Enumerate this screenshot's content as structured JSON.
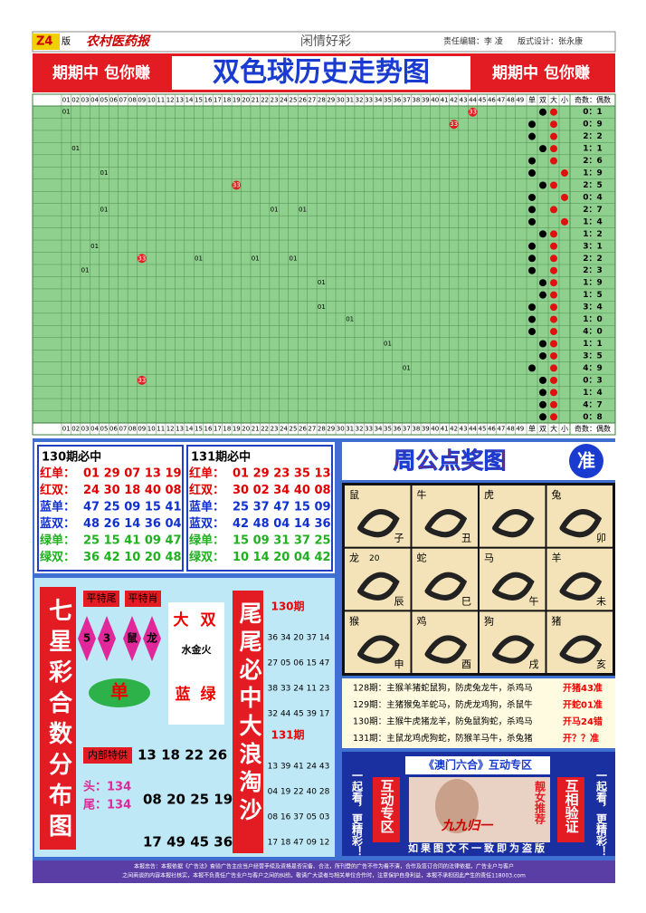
{
  "header": {
    "page": "Z4",
    "edition": "版",
    "paper": "农村医药报",
    "column": "闲情好彩",
    "editor": "责任编辑：李 凌",
    "designer": "版式设计：张永康"
  },
  "banner": {
    "left": "期期中 包你赚",
    "title": "双色球历史走势图",
    "right": "期期中 包你赚"
  },
  "trend": {
    "columns": [
      "01",
      "02",
      "03",
      "04",
      "05",
      "06",
      "07",
      "08",
      "09",
      "10",
      "11",
      "12",
      "13",
      "14",
      "15",
      "16",
      "17",
      "18",
      "19",
      "20",
      "21",
      "22",
      "23",
      "24",
      "25",
      "26",
      "27",
      "28",
      "29",
      "30",
      "31",
      "32",
      "33",
      "34",
      "35",
      "36",
      "37",
      "38",
      "39",
      "40",
      "41",
      "42",
      "43",
      "44",
      "45",
      "46",
      "47",
      "48",
      "49"
    ],
    "tail_columns": [
      "单",
      "双",
      "大",
      "小"
    ],
    "ratio_header": "奇数：偶数",
    "dot_colors": {
      "单": "#000000",
      "双": "#000000",
      "大": "#e01010",
      "小": "#e01010"
    },
    "rows": [
      {
        "balls": [
          {
            "col": "01",
            "label": "01"
          },
          {
            "col": "44",
            "label": "33",
            "color": "#e02020"
          }
        ],
        "dots": [
          "双",
          "大"
        ],
        "ratio": "0：1"
      },
      {
        "balls": [
          {
            "col": "42",
            "label": "33",
            "color": "#e02020"
          }
        ],
        "dots": [
          "单",
          "大"
        ],
        "ratio": "0：9"
      },
      {
        "balls": [],
        "dots": [
          "单",
          "大"
        ],
        "ratio": "2：2"
      },
      {
        "balls": [
          {
            "col": "02",
            "label": "01"
          }
        ],
        "dots": [
          "双",
          "大"
        ],
        "ratio": "1：1"
      },
      {
        "balls": [],
        "dots": [
          "单",
          "大"
        ],
        "ratio": "2：6"
      },
      {
        "balls": [
          {
            "col": "05",
            "label": "01"
          }
        ],
        "dots": [
          "单",
          "小"
        ],
        "ratio": "1：9"
      },
      {
        "balls": [
          {
            "col": "19",
            "label": "33",
            "color": "#e02020"
          }
        ],
        "dots": [
          "双",
          "大"
        ],
        "ratio": "2：5"
      },
      {
        "balls": [],
        "dots": [
          "单",
          "小"
        ],
        "ratio": "0：4"
      },
      {
        "balls": [
          {
            "col": "05",
            "label": "01"
          },
          {
            "col": "23",
            "label": "01"
          },
          {
            "col": "26",
            "label": "01"
          }
        ],
        "dots": [
          "单",
          "大"
        ],
        "ratio": "2：7"
      },
      {
        "balls": [],
        "dots": [
          "单",
          "小"
        ],
        "ratio": "1：4"
      },
      {
        "balls": [],
        "dots": [
          "双",
          "大"
        ],
        "ratio": "1：2"
      },
      {
        "balls": [
          {
            "col": "04",
            "label": "01"
          }
        ],
        "dots": [
          "单",
          "大"
        ],
        "ratio": "3：1"
      },
      {
        "balls": [
          {
            "col": "09",
            "label": "33",
            "color": "#e02020"
          },
          {
            "col": "15",
            "label": "01"
          },
          {
            "col": "21",
            "label": "01"
          },
          {
            "col": "25",
            "label": "01"
          }
        ],
        "dots": [
          "单",
          "大"
        ],
        "ratio": "2：2"
      },
      {
        "balls": [
          {
            "col": "03",
            "label": "01"
          }
        ],
        "dots": [
          "单",
          "大"
        ],
        "ratio": "2：3"
      },
      {
        "balls": [
          {
            "col": "28",
            "label": "01"
          }
        ],
        "dots": [
          "双",
          "大"
        ],
        "ratio": "1：9"
      },
      {
        "balls": [],
        "dots": [
          "双",
          "大"
        ],
        "ratio": "1：5"
      },
      {
        "balls": [
          {
            "col": "28",
            "label": "01"
          }
        ],
        "dots": [
          "单",
          "大"
        ],
        "ratio": "3：4"
      },
      {
        "balls": [
          {
            "col": "31",
            "label": "01"
          }
        ],
        "dots": [
          "单",
          "大"
        ],
        "ratio": "1：0"
      },
      {
        "balls": [],
        "dots": [
          "单",
          "大"
        ],
        "ratio": "4：0"
      },
      {
        "balls": [
          {
            "col": "35",
            "label": "01"
          }
        ],
        "dots": [
          "双",
          "大"
        ],
        "ratio": "1：1"
      },
      {
        "balls": [],
        "dots": [
          "双",
          "大"
        ],
        "ratio": "3：5"
      },
      {
        "balls": [
          {
            "col": "37",
            "label": "01"
          }
        ],
        "dots": [
          "单",
          "大"
        ],
        "ratio": "4：9"
      },
      {
        "balls": [
          {
            "col": "09",
            "label": "33",
            "color": "#e02020"
          }
        ],
        "dots": [
          "双",
          "大"
        ],
        "ratio": "0：3"
      },
      {
        "balls": [],
        "dots": [
          "双",
          "大"
        ],
        "ratio": "1：4"
      },
      {
        "balls": [],
        "dots": [
          "双",
          "大"
        ],
        "ratio": "4：7"
      },
      {
        "balls": [],
        "dots": [
          "双",
          "大"
        ],
        "ratio": "0：8"
      }
    ]
  },
  "predictions": [
    {
      "title": "130期必中",
      "lines": [
        {
          "label": "红单：",
          "nums": "01 29 07 13 19",
          "color": "#e00000"
        },
        {
          "label": "红双：",
          "nums": "24 30 18 40 08",
          "color": "#e00000"
        },
        {
          "label": "蓝单：",
          "nums": "47 25 09 15 41",
          "color": "#1030d0"
        },
        {
          "label": "蓝双：",
          "nums": "48 26 14 36 04",
          "color": "#1030d0"
        },
        {
          "label": "绿单：",
          "nums": "25 15 41 09 47",
          "color": "#20b020"
        },
        {
          "label": "绿双：",
          "nums": "36 42 10 20 48",
          "color": "#20b020"
        }
      ]
    },
    {
      "title": "131期必中",
      "lines": [
        {
          "label": "红单：",
          "nums": "01 29 23 35 13",
          "color": "#e00000"
        },
        {
          "label": "红双：",
          "nums": "30 02 34 40 08",
          "color": "#e00000"
        },
        {
          "label": "蓝单：",
          "nums": "25 37 47 15 09",
          "color": "#1030d0"
        },
        {
          "label": "蓝双：",
          "nums": "42 48 04 14 36",
          "color": "#1030d0"
        },
        {
          "label": "绿单：",
          "nums": "15 09 31 37 25",
          "color": "#20b020"
        },
        {
          "label": "绿双：",
          "nums": "10 14 20 04 42",
          "color": "#20b020"
        }
      ]
    }
  ],
  "qixing": {
    "title": "七星彩合数分布图",
    "tag1": "平特尾",
    "tag2": "平特肖",
    "d1": "5",
    "d2": "3",
    "d3": "鼠",
    "d4": "龙",
    "big": "大",
    "even": "双",
    "elements": "水金火",
    "odd": "单",
    "blue": "蓝",
    "green": "绿",
    "inside": "内部特供",
    "inside_nums": "13 18 22 26",
    "head": "头：134",
    "tail": "尾：134",
    "nums2": "08 20 25 19",
    "nums3": "17 49 45 36",
    "side_title": "尾尾必中大浪淘沙",
    "periods": [
      {
        "title": "130期",
        "lines": [
          "36 34 20 37 14",
          "27 05 06 15 47",
          "38 33 24 11 23",
          "32 44 45 39 17"
        ]
      },
      {
        "title": "131期",
        "lines": [
          "13 39 41 24 43",
          "04 19 22 40 28",
          "08 16 37 05 03",
          "17 18 47 09 12"
        ]
      }
    ]
  },
  "zhougong": {
    "title": "周公点奖图",
    "badge": "准",
    "cells": [
      {
        "animal": "鼠",
        "branch": "子"
      },
      {
        "animal": "牛",
        "branch": "丑"
      },
      {
        "animal": "虎"
      },
      {
        "animal": "兔",
        "branch": "卯"
      },
      {
        "animal": "龙",
        "branch": "辰",
        "note": "20"
      },
      {
        "animal": "蛇",
        "branch": "巳"
      },
      {
        "animal": "马",
        "branch": "午"
      },
      {
        "animal": "羊",
        "branch": "未"
      },
      {
        "animal": "猴",
        "branch": "申"
      },
      {
        "animal": "鸡",
        "branch": "酉"
      },
      {
        "animal": "狗",
        "branch": "戌"
      },
      {
        "animal": "猪",
        "branch": "亥"
      }
    ],
    "results": [
      {
        "text": "128期：主猴羊猪蛇鼠狗，防虎兔龙牛，杀鸡马",
        "result": "开猪43准"
      },
      {
        "text": "129期：主猪猴兔羊蛇马，防虎龙鸡狗，杀鼠牛",
        "result": "开蛇01准"
      },
      {
        "text": "130期：主猴牛虎猪龙羊，防兔鼠狗蛇，杀鸡马",
        "result": "开马24错"
      },
      {
        "text": "131期：主鼠龙鸡虎狗蛇，防猴羊马牛，杀兔猪",
        "result": "开？？准"
      }
    ]
  },
  "macau": {
    "title": "《澳门六合》互动专区",
    "left_side": "一起看，更精彩！",
    "left_box": "互动专区",
    "right_box": "互相验证",
    "right_side": "一起看，更精彩！",
    "tag": "靓女推荐",
    "slogan": "九九归一",
    "notice": "如果图文不一致即为盗版"
  },
  "footer": {
    "lines": [
      "本报忠告：本报依据《广告法》查验广告主应当户经营手续及资格是否完备、合法，所刊登的广告不作为看不清，合作及签订合同的法律依据，广告业户与客户",
      "之间商谈的内容本报社核实，本报不负责任广告业户与客户之间的纠纷。敬请广大读者与相关单位合作时，注意保护自身利益，本报不承担因此产生的责任118003.com"
    ]
  }
}
